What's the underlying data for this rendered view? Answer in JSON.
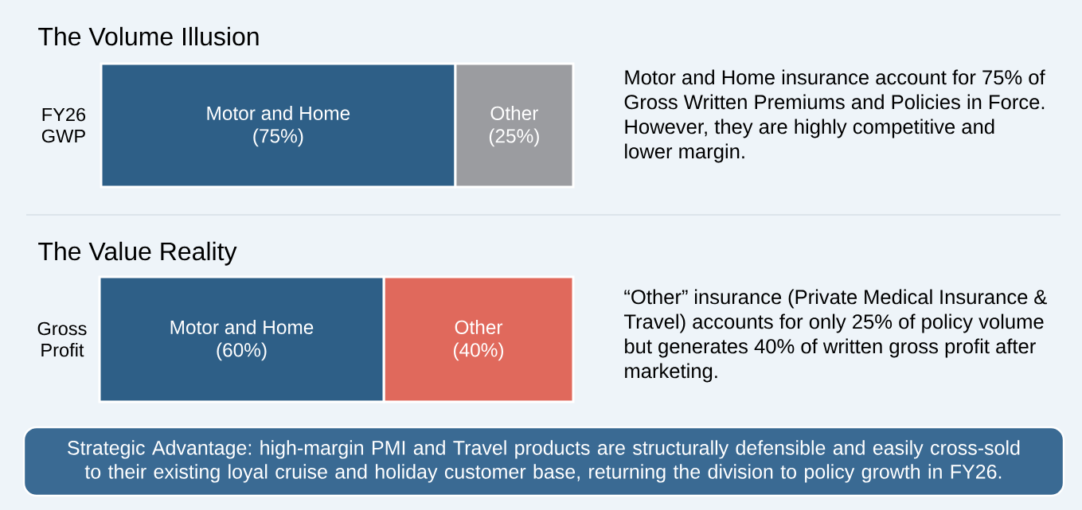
{
  "chart_data": [
    {
      "type": "bar",
      "orientation": "horizontal",
      "stacked": true,
      "title": "The Volume Illusion",
      "categories": [
        "FY26 GWP"
      ],
      "tick_labels": "y",
      "series": [
        {
          "name": "Motor and Home",
          "color": "#2e5f87",
          "values": [
            75
          ],
          "value_labels": [
            "(75%)"
          ]
        },
        {
          "name": "Other",
          "color": "#9b9ca0",
          "values": [
            25
          ],
          "value_labels": [
            "(25%)"
          ]
        }
      ],
      "annotations": [
        "Motor and Home insurance account for 75% of Gross Written Premiums and Policies in Force. However, they are highly competitive and lower margin."
      ]
    },
    {
      "type": "bar",
      "orientation": "horizontal",
      "stacked": true,
      "title": "The Value Reality",
      "categories": [
        "Gross Profit"
      ],
      "tick_labels": "y",
      "series": [
        {
          "name": "Motor and Home",
          "color": "#2e5f87",
          "values": [
            60
          ],
          "value_labels": [
            "(60%)"
          ]
        },
        {
          "name": "Other",
          "color": "#e0695c",
          "values": [
            40
          ],
          "value_labels": [
            "(40%)"
          ]
        }
      ],
      "annotations": [
        "“Other” insurance (Private Medical Insurance & Travel) accounts for only 25% of policy volume but generates 40% of written gross profit after marketing."
      ]
    },
    {
      "type": "other",
      "annotations": [
        "Strategic Advantage: high-margin PMI and Travel products are structurally defensible and easily cross-sold to their existing loyal cruise and holiday customer base, returning the division to policy growth in FY26."
      ]
    }
  ]
}
